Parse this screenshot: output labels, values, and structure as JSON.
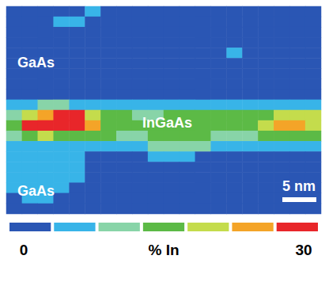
{
  "chart_data": {
    "type": "heatmap",
    "tick_labels": false,
    "annotations": [
      "GaAs",
      "InGaAs",
      "GaAs"
    ],
    "scale_bar": "5 nm",
    "colorbar": {
      "range": [
        0,
        30
      ],
      "ticks": [
        0,
        30
      ],
      "label": "% In",
      "colors": [
        "#2a56b4",
        "#38b4e8",
        "#88d4a8",
        "#5cba46",
        "#c4dc4c",
        "#f4a428",
        "#e8262a"
      ]
    },
    "cells": [
      [
        2,
        2,
        2,
        2,
        3,
        5,
        2,
        2,
        2,
        2,
        2,
        2,
        2,
        2,
        2,
        3,
        2,
        2,
        2,
        2
      ],
      [
        2,
        2,
        3,
        6,
        5,
        2,
        2,
        2,
        2,
        2,
        2,
        2,
        2,
        2,
        2,
        2,
        2,
        3,
        2,
        2
      ],
      [
        2,
        2,
        2,
        3,
        2,
        2,
        2,
        2,
        2,
        3,
        2,
        2,
        2,
        2,
        2,
        2,
        2,
        2,
        2,
        2
      ],
      [
        2,
        2,
        2,
        2,
        2,
        2,
        2,
        2,
        2,
        2,
        2,
        2,
        2,
        2,
        2,
        2,
        2,
        2,
        2,
        2
      ],
      [
        2,
        2,
        2,
        2,
        2,
        2,
        2,
        2,
        2,
        2,
        2,
        2,
        2,
        2,
        5,
        2,
        2,
        2,
        2,
        2
      ],
      [
        2,
        2,
        2,
        2,
        2,
        2,
        2,
        2,
        2,
        2,
        2,
        2,
        2,
        2,
        2,
        2,
        2,
        2,
        2,
        2
      ],
      [
        2,
        2,
        2,
        2,
        2,
        2,
        2,
        2,
        2,
        2,
        2,
        2,
        2,
        2,
        2,
        2,
        2,
        2,
        2,
        2
      ],
      [
        2,
        2,
        2,
        2,
        2,
        2,
        2,
        2,
        2,
        2,
        2,
        2,
        2,
        2,
        2,
        2,
        2,
        2,
        2,
        2
      ],
      [
        2,
        2,
        2,
        2,
        2,
        2,
        2,
        2,
        2,
        2,
        2,
        2,
        2,
        2,
        2,
        2,
        2,
        2,
        2,
        2
      ],
      [
        6,
        6,
        10,
        10,
        6,
        6,
        6,
        5,
        5,
        5,
        5,
        5,
        5,
        6,
        6,
        6,
        6,
        6,
        6,
        6
      ],
      [
        12,
        20,
        24,
        26,
        26,
        20,
        15,
        13,
        12,
        12,
        13,
        13,
        14,
        14,
        15,
        15,
        17,
        20,
        20,
        19
      ],
      [
        15,
        26,
        28,
        28,
        27,
        24,
        16,
        14,
        13,
        13,
        14,
        15,
        16,
        16,
        15,
        17,
        20,
        23,
        24,
        20
      ],
      [
        12,
        16,
        18,
        17,
        16,
        14,
        13,
        12,
        12,
        13,
        13,
        14,
        13,
        12,
        12,
        12,
        13,
        14,
        14,
        13
      ],
      [
        6,
        6,
        6,
        6,
        6,
        5,
        5,
        5,
        6,
        10,
        11,
        12,
        10,
        6,
        6,
        6,
        6,
        6,
        5,
        5
      ],
      [
        6,
        5,
        6,
        6,
        5,
        2,
        2,
        2,
        2,
        5,
        6,
        6,
        2,
        2,
        2,
        2,
        2,
        2,
        2,
        2
      ],
      [
        6,
        6,
        6,
        5,
        6,
        2,
        2,
        2,
        2,
        2,
        2,
        2,
        2,
        2,
        2,
        2,
        2,
        2,
        2,
        2
      ],
      [
        5,
        6,
        7,
        6,
        5,
        3,
        2,
        2,
        2,
        2,
        2,
        2,
        2,
        2,
        2,
        2,
        2,
        2,
        2,
        2
      ],
      [
        6,
        5,
        6,
        5,
        2,
        2,
        2,
        2,
        2,
        2,
        2,
        2,
        2,
        2,
        2,
        2,
        2,
        2,
        2,
        2
      ],
      [
        2,
        5,
        6,
        2,
        2,
        2,
        2,
        2,
        2,
        2,
        2,
        2,
        2,
        2,
        2,
        2,
        2,
        2,
        2,
        2
      ],
      [
        2,
        2,
        2,
        2,
        2,
        2,
        2,
        2,
        2,
        2,
        2,
        2,
        2,
        2,
        2,
        2,
        2,
        2,
        2,
        2
      ]
    ]
  }
}
